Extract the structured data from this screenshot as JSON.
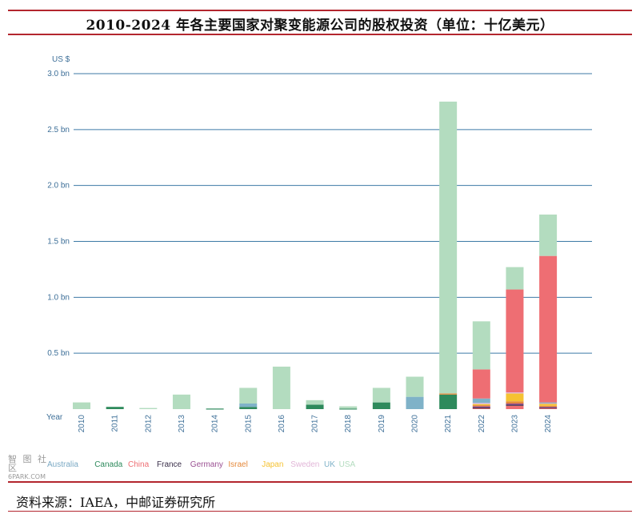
{
  "title": "2010-2024 年各主要国家对聚变能源公司的股权投资（单位：十亿美元）",
  "source": "资料来源：IAEA，中邮证券研究所",
  "watermark": {
    "line1": "智 图 社 区",
    "line2": "6PARK.COM"
  },
  "colors": {
    "rule": "#b3262e",
    "grid": "#3d7aa6"
  },
  "chart_data": {
    "type": "bar",
    "stacked": true,
    "ylabel": "US $",
    "xlabel": "Year",
    "ylim": [
      0,
      3.0
    ],
    "y_ticks": [
      {
        "value": 0.5,
        "label": "0.5 bn"
      },
      {
        "value": 1.0,
        "label": "1.0 bn"
      },
      {
        "value": 1.5,
        "label": "1.5 bn"
      },
      {
        "value": 2.0,
        "label": "2.0 bn"
      },
      {
        "value": 2.5,
        "label": "2.5 bn"
      },
      {
        "value": 3.0,
        "label": "3.0 bn"
      }
    ],
    "grid": true,
    "legend_position": "bottom-left",
    "categories": [
      "2010",
      "2011",
      "2012",
      "2013",
      "2014",
      "2015",
      "2016",
      "2017",
      "2018",
      "2019",
      "2020",
      "2021",
      "2022",
      "2023",
      "2024"
    ],
    "series": [
      {
        "name": "Australia",
        "color": "#7aa9c4",
        "values": [
          0,
          0,
          0,
          0,
          0,
          0,
          0,
          0,
          0,
          0,
          0,
          0,
          0,
          0,
          0
        ]
      },
      {
        "name": "Canada",
        "color": "#2e8a5c",
        "values": [
          0,
          0.02,
          0,
          0,
          0.005,
          0.02,
          0,
          0.04,
          0.005,
          0.06,
          0,
          0.13,
          0,
          0,
          0
        ]
      },
      {
        "name": "China",
        "color": "#ee6e73",
        "values": [
          0,
          0,
          0,
          0,
          0,
          0,
          0,
          0,
          0,
          0,
          0,
          0,
          0.01,
          0.03,
          0.01
        ]
      },
      {
        "name": "France",
        "color": "#3a2f4a",
        "values": [
          0,
          0,
          0,
          0,
          0,
          0,
          0,
          0,
          0,
          0,
          0,
          0,
          0.005,
          0.01,
          0.005
        ]
      },
      {
        "name": "Germany",
        "color": "#9a4f92",
        "values": [
          0,
          0,
          0,
          0,
          0,
          0,
          0,
          0,
          0,
          0,
          0,
          0,
          0.01,
          0.01,
          0.005
        ]
      },
      {
        "name": "Israel",
        "color": "#e58a3c",
        "values": [
          0,
          0,
          0,
          0,
          0,
          0,
          0,
          0,
          0,
          0,
          0,
          0.01,
          0.01,
          0.02,
          0.01
        ]
      },
      {
        "name": "Japan",
        "color": "#f5c232",
        "values": [
          0,
          0,
          0,
          0,
          0,
          0,
          0,
          0,
          0,
          0,
          0,
          0,
          0.01,
          0.07,
          0.02
        ]
      },
      {
        "name": "Sweden",
        "color": "#e2b6d8",
        "values": [
          0,
          0,
          0,
          0,
          0,
          0,
          0,
          0,
          0,
          0,
          0,
          0,
          0.01,
          0.01,
          0.005
        ]
      },
      {
        "name": "UK",
        "color": "#7fb2c8",
        "values": [
          0,
          0,
          0,
          0,
          0,
          0.03,
          0,
          0,
          0,
          0,
          0.11,
          0,
          0.04,
          0,
          0.005
        ]
      },
      {
        "name": "China-2",
        "legend": false,
        "color": "#ee6e73",
        "values": [
          0,
          0,
          0,
          0,
          0,
          0,
          0,
          0,
          0,
          0,
          0,
          0,
          0.26,
          0.92,
          1.31
        ]
      },
      {
        "name": "USA",
        "color": "#b3dcbf",
        "values": [
          0.06,
          0,
          0.01,
          0.13,
          0,
          0.14,
          0.38,
          0.04,
          0.02,
          0.13,
          0.18,
          2.61,
          0.43,
          0.2,
          0.37
        ]
      }
    ]
  }
}
